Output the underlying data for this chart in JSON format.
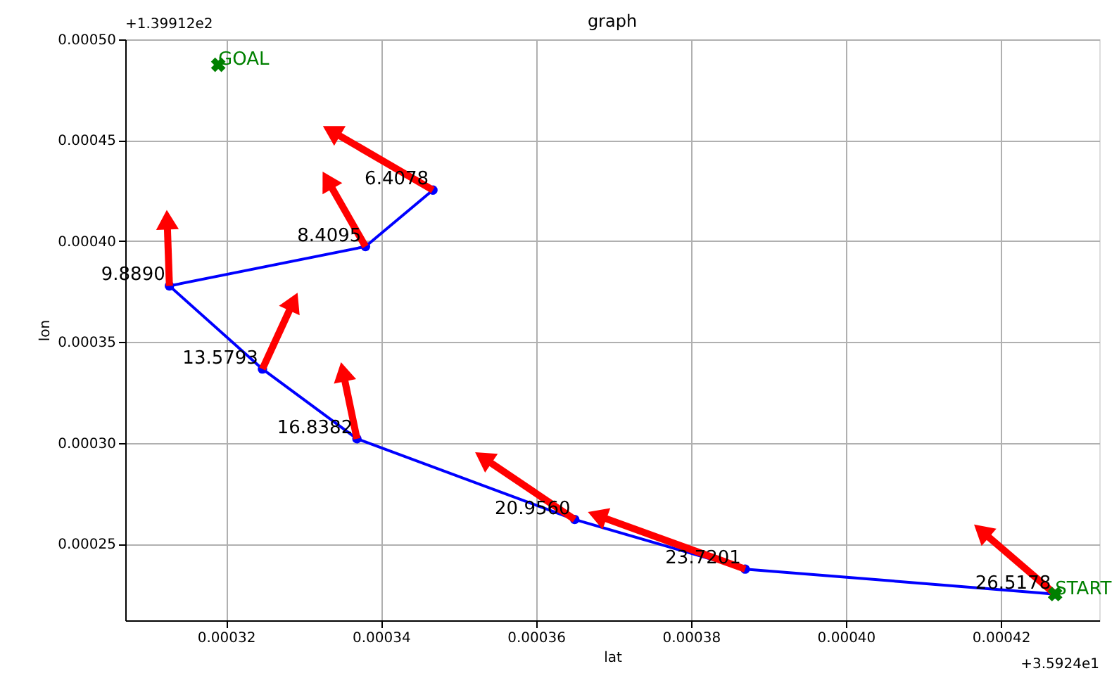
{
  "chart_data": {
    "type": "line",
    "title": "graph",
    "xlabel": "lat",
    "ylabel": "lon",
    "xlim": [
      0.000307,
      0.0004327
    ],
    "ylim": [
      0.000212,
      0.0005
    ],
    "xticks": [
      {
        "value": 0.00032,
        "label": "0.00032"
      },
      {
        "value": 0.00034,
        "label": "0.00034"
      },
      {
        "value": 0.00036,
        "label": "0.00036"
      },
      {
        "value": 0.00038,
        "label": "0.00038"
      },
      {
        "value": 0.0004,
        "label": "0.00040"
      },
      {
        "value": 0.00042,
        "label": "0.00042"
      }
    ],
    "yticks": [
      {
        "value": 0.00025,
        "label": "0.00025"
      },
      {
        "value": 0.0003,
        "label": "0.00030"
      },
      {
        "value": 0.00035,
        "label": "0.00035"
      },
      {
        "value": 0.0004,
        "label": "0.00040"
      },
      {
        "value": 0.00045,
        "label": "0.00045"
      },
      {
        "value": 0.0005,
        "label": "0.00050"
      }
    ],
    "grid": true,
    "series": [
      {
        "type": "line",
        "color": "#0000ff",
        "marker": "circle",
        "x": [
          0.000427,
          0.000387,
          0.000365,
          0.0003369,
          0.0003247,
          0.0003127,
          0.000338,
          0.0003467
        ],
        "values": [
          0.000225,
          0.0002374,
          0.000262,
          0.000302,
          0.0003366,
          0.0003778,
          0.0003973,
          0.0004253
        ]
      },
      {
        "type": "line",
        "color": "#ff0000",
        "marker": "triangle",
        "x": [
          0.000427,
          0.0004175
        ],
        "values": [
          0.000225,
          0.0002563
        ]
      },
      {
        "type": "line",
        "color": "#ff0000",
        "marker": "triangle",
        "x": [
          0.000387,
          0.0003679
        ],
        "values": [
          0.0002374,
          0.000264
        ]
      },
      {
        "type": "line",
        "color": "#ff0000",
        "marker": "triangle",
        "x": [
          0.000365,
          0.0003532
        ],
        "values": [
          0.000262,
          0.0002926
        ]
      },
      {
        "type": "line",
        "color": "#ff0000",
        "marker": "triangle",
        "x": [
          0.0003369,
          0.0003351
        ],
        "values": [
          0.000302,
          0.0003352
        ]
      },
      {
        "type": "line",
        "color": "#ff0000",
        "marker": "triangle",
        "x": [
          0.0003247,
          0.0003287
        ],
        "values": [
          0.0003366,
          0.00037
        ]
      },
      {
        "type": "line",
        "color": "#ff0000",
        "marker": "triangle",
        "x": [
          0.0003127,
          0.0003124
        ],
        "values": [
          0.0003778,
          0.0004106
        ]
      },
      {
        "type": "line",
        "color": "#ff0000",
        "marker": "triangle",
        "x": [
          0.000338,
          0.0003331
        ],
        "values": [
          0.0003973,
          0.0004302
        ]
      },
      {
        "type": "line",
        "color": "#ff0000",
        "marker": "triangle",
        "x": [
          0.0003467,
          0.0003336
        ],
        "values": [
          0.0004253,
          0.0004546
        ]
      },
      {
        "type": "scatter",
        "name": "START",
        "color": "#008000",
        "marker": "cross",
        "x": [
          0.000427
        ],
        "values": [
          0.000225
        ]
      },
      {
        "type": "scatter",
        "name": "GOAL",
        "color": "#008000",
        "marker": "cross",
        "x": [
          0.000319
        ],
        "values": [
          0.0004874
        ]
      }
    ],
    "annotations": [
      {
        "text": "26.5178",
        "x": 0.000427,
        "y": 0.000225
      },
      {
        "text": "23.7201",
        "x": 0.000387,
        "y": 0.0002374
      },
      {
        "text": "20.9560",
        "x": 0.000365,
        "y": 0.000262
      },
      {
        "text": "16.8382",
        "x": 0.0003369,
        "y": 0.000302
      },
      {
        "text": "13.5793",
        "x": 0.0003247,
        "y": 0.0003366
      },
      {
        "text": "9.8890",
        "x": 0.0003127,
        "y": 0.0003778
      },
      {
        "text": "8.4095",
        "x": 0.000338,
        "y": 0.0003973
      },
      {
        "text": "6.4078",
        "x": 0.0003467,
        "y": 0.0004253
      },
      "+1.39912e2",
      "+3.5924e1"
    ]
  }
}
